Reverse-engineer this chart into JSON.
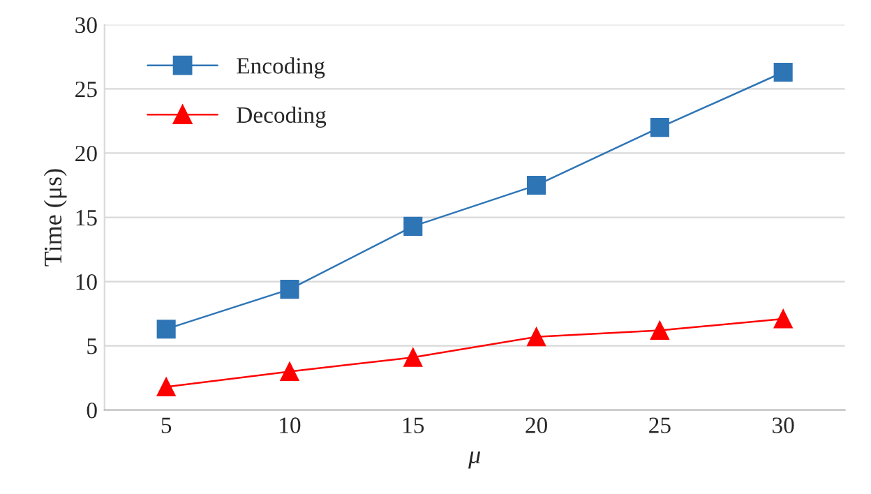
{
  "chart_data": {
    "type": "line",
    "xlabel": "μ",
    "ylabel": "Time (μs)",
    "categories": [
      "5",
      "10",
      "15",
      "20",
      "25",
      "30"
    ],
    "series": [
      {
        "name": "Encoding",
        "color": "#2e75b6",
        "marker": "square",
        "values": [
          6.3,
          9.4,
          14.3,
          17.5,
          22.0,
          26.3
        ]
      },
      {
        "name": "Decoding",
        "color": "#ff0000",
        "marker": "triangle",
        "values": [
          1.8,
          3.0,
          4.1,
          5.7,
          6.2,
          7.1
        ]
      }
    ],
    "ylim": [
      0,
      30
    ],
    "yticks": [
      0,
      5,
      10,
      15,
      20,
      25,
      30
    ],
    "grid": "y",
    "legend": "top left",
    "line_style": "solid"
  }
}
